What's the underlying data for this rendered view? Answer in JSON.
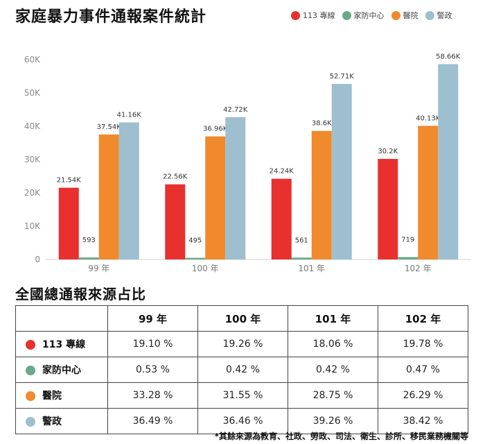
{
  "title": "家庭暴力事件通報案件統計",
  "legend": [
    {
      "label": "113 專線",
      "color": "#e8302f"
    },
    {
      "label": "家防中心",
      "color": "#6aa88a"
    },
    {
      "label": "醫院",
      "color": "#f08a2c"
    },
    {
      "label": "警政",
      "color": "#9dbfcf"
    }
  ],
  "chart_data": {
    "type": "bar",
    "categories": [
      "99 年",
      "100 年",
      "101 年",
      "102 年"
    ],
    "series": [
      {
        "name": "113 專線",
        "color": "#e8302f",
        "values": [
          21540,
          22560,
          24240,
          30200
        ],
        "labels": [
          "21.54K",
          "22.56K",
          "24.24K",
          "30.2K"
        ]
      },
      {
        "name": "家防中心",
        "color": "#6aa88a",
        "values": [
          593,
          495,
          561,
          719
        ],
        "labels": [
          "593",
          "495",
          "561",
          "719"
        ]
      },
      {
        "name": "醫院",
        "color": "#f08a2c",
        "values": [
          37540,
          36960,
          38600,
          40130
        ],
        "labels": [
          "37.54K",
          "36.96K",
          "38.6K",
          "40.13K"
        ]
      },
      {
        "name": "警政",
        "color": "#9dbfcf",
        "values": [
          41160,
          42720,
          52710,
          58660
        ],
        "labels": [
          "41.16K",
          "42.72K",
          "52.71K",
          "58.66K"
        ]
      }
    ],
    "yticks": [
      "0",
      "10K",
      "20K",
      "30K",
      "40K",
      "50K",
      "60K"
    ],
    "ylim": [
      0,
      60000
    ],
    "legend_position": "top-right",
    "grid": false
  },
  "table": {
    "title": "全國總通報來源占比",
    "columns": [
      "99 年",
      "100 年",
      "101 年",
      "102 年"
    ],
    "rows": [
      {
        "label": "113 專線",
        "color": "#e8302f",
        "values": [
          "19.10 %",
          "19.26 %",
          "18.06 %",
          "19.78 %"
        ]
      },
      {
        "label": "家防中心",
        "color": "#6aa88a",
        "values": [
          "0.53 %",
          "0.42 %",
          "0.42 %",
          "0.47 %"
        ]
      },
      {
        "label": "醫院",
        "color": "#f08a2c",
        "values": [
          "33.28 %",
          "31.55 %",
          "28.75 %",
          "26.29 %"
        ]
      },
      {
        "label": "警政",
        "color": "#9dbfcf",
        "values": [
          "36.49 %",
          "36.46 %",
          "39.26 %",
          "38.42 %"
        ]
      }
    ]
  },
  "footnote": "*其餘來源為教育、社政、勞政、司法、衛生、診所、移民業務機關等"
}
